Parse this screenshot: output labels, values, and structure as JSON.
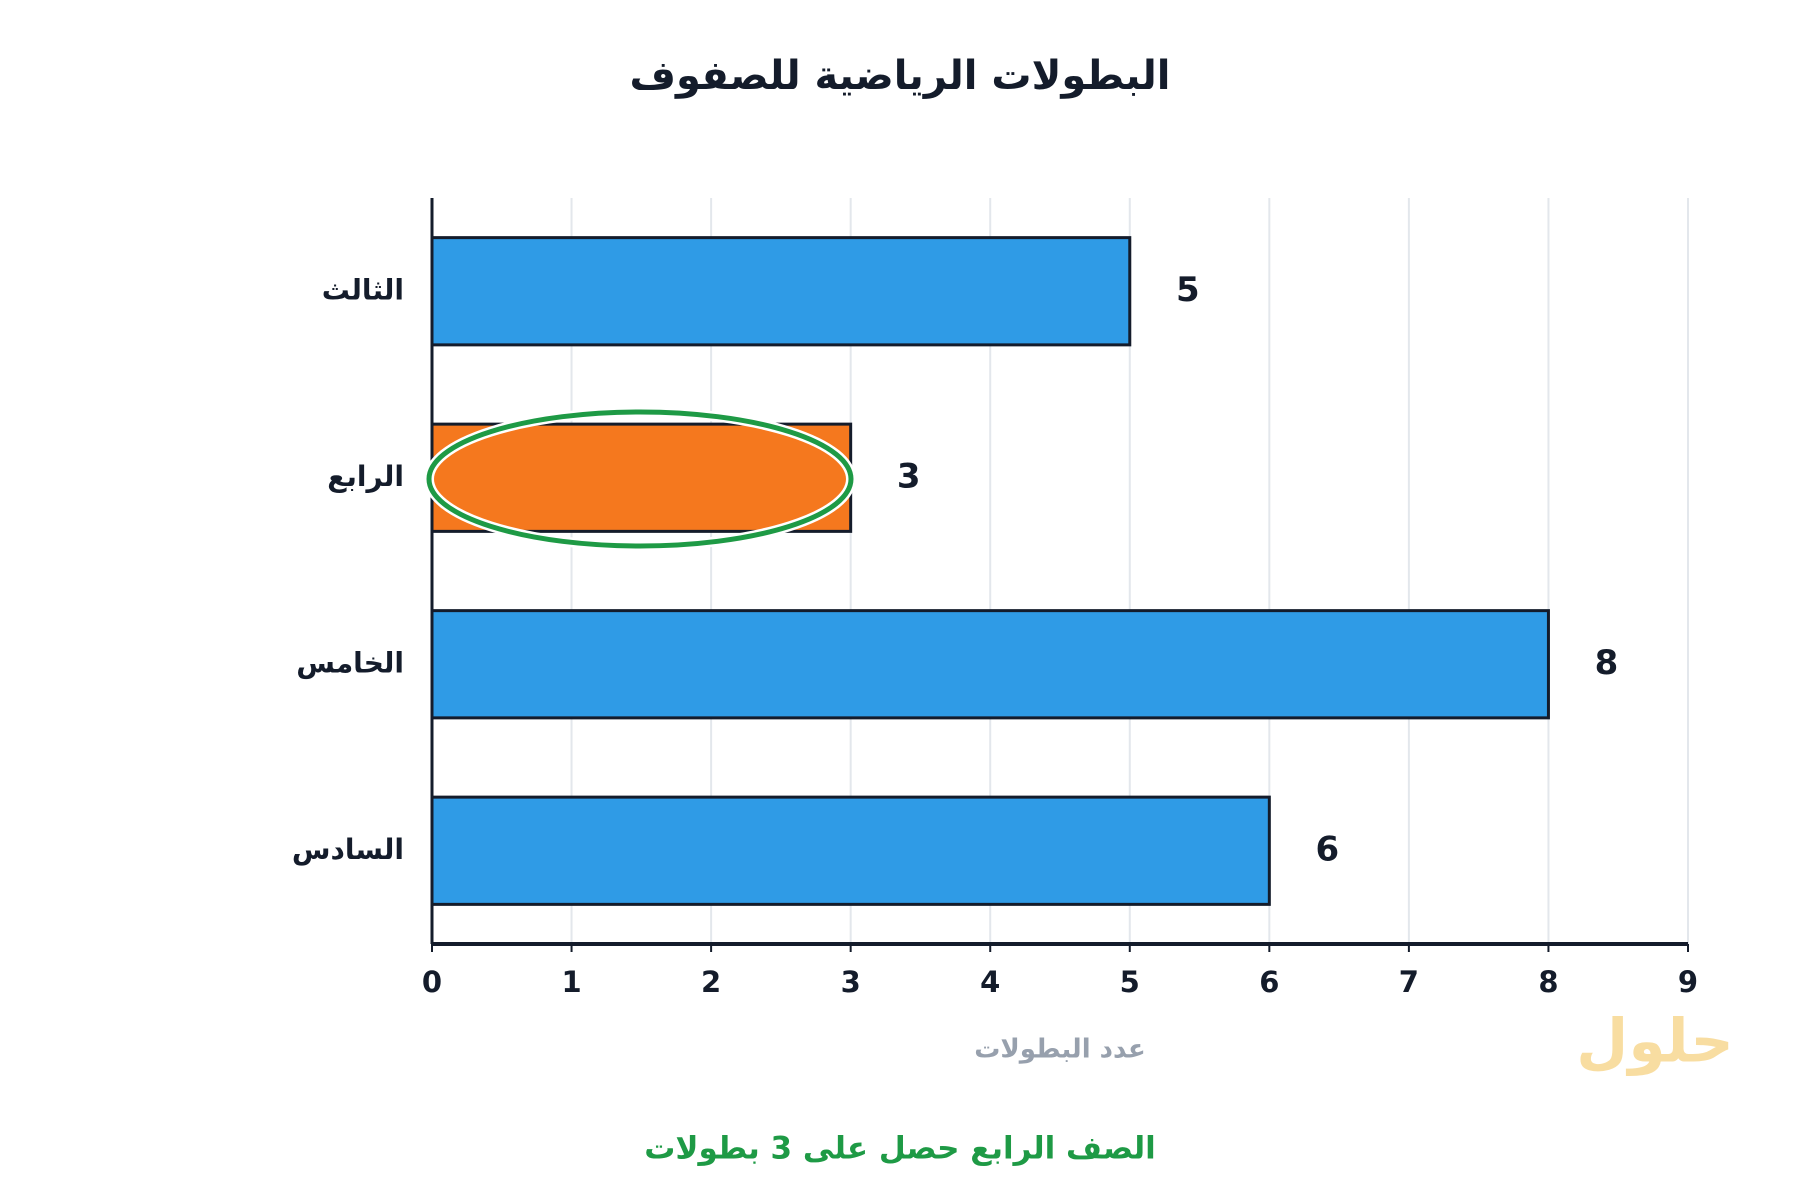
{
  "chart_data": {
    "type": "bar",
    "orientation": "horizontal",
    "title": "البطولات الرياضية للصفوف",
    "categories": [
      "الثالث",
      "الرابع",
      "الخامس",
      "السادس"
    ],
    "values": [
      5,
      3,
      8,
      6
    ],
    "colors": [
      "#2f9be6",
      "#f5781e",
      "#2f9be6",
      "#2f9be6"
    ],
    "xlim": [
      0,
      9
    ],
    "xticks": [
      0,
      1,
      2,
      3,
      4,
      5,
      6,
      7,
      8,
      9
    ],
    "xlabel": "عدد البطولات",
    "annotation": "الصف الرابع حصل على 3 بطولات",
    "watermark": "حلول",
    "grid": true
  }
}
